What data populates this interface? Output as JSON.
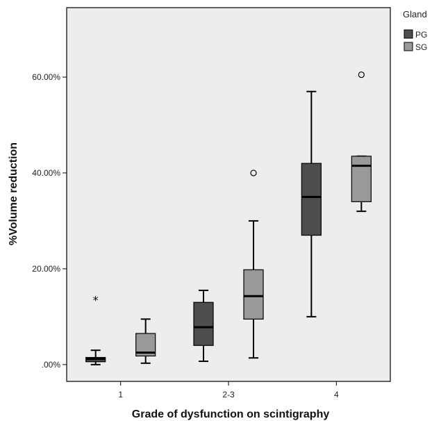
{
  "chart_data": {
    "type": "boxplot",
    "xlabel": "Grade of dysfunction on scintigraphy",
    "ylabel": "%Volume reduction",
    "ylim": [
      -3.5,
      74.5
    ],
    "yticks": [
      0,
      20,
      40,
      60
    ],
    "ytick_labels": [
      ".00%",
      "20.00%",
      "40.00%",
      "60.00%"
    ],
    "categories": [
      "1",
      "2-3",
      "4"
    ],
    "grid": false,
    "legend": {
      "title": "Gland",
      "placement": "outside-top-right",
      "entries": [
        {
          "label": "PG",
          "color": "#4d4d4d"
        },
        {
          "label": "SG",
          "color": "#999999"
        }
      ]
    },
    "series": [
      {
        "name": "PG",
        "color": "#4d4d4d",
        "boxes": [
          {
            "category": "1",
            "min": 0.0,
            "q1": 0.6,
            "median": 1.2,
            "q3": 1.5,
            "max": 3.0,
            "outliers": [
              {
                "value": 13.5,
                "marker": "star"
              }
            ]
          },
          {
            "category": "2-3",
            "min": 0.7,
            "q1": 4.0,
            "median": 7.8,
            "q3": 13.0,
            "max": 15.5,
            "outliers": []
          },
          {
            "category": "4",
            "min": 10.0,
            "q1": 27.0,
            "median": 35.0,
            "q3": 42.0,
            "max": 57.0,
            "outliers": []
          }
        ]
      },
      {
        "name": "SG",
        "color": "#999999",
        "boxes": [
          {
            "category": "1",
            "min": 0.3,
            "q1": 1.8,
            "median": 2.5,
            "q3": 6.5,
            "max": 9.5,
            "outliers": []
          },
          {
            "category": "2-3",
            "min": 1.4,
            "q1": 9.5,
            "median": 14.3,
            "q3": 19.8,
            "max": 30.0,
            "outliers": [
              {
                "value": 40.0,
                "marker": "circle"
              }
            ]
          },
          {
            "category": "4",
            "min": 32.0,
            "q1": 34.0,
            "median": 41.5,
            "q3": 43.5,
            "max": 43.5,
            "outliers": [
              {
                "value": 60.5,
                "marker": "circle"
              }
            ]
          }
        ]
      }
    ],
    "colors": {
      "plot_background": "#ededed",
      "page_background": "#ffffff",
      "axis": "#000000"
    }
  }
}
